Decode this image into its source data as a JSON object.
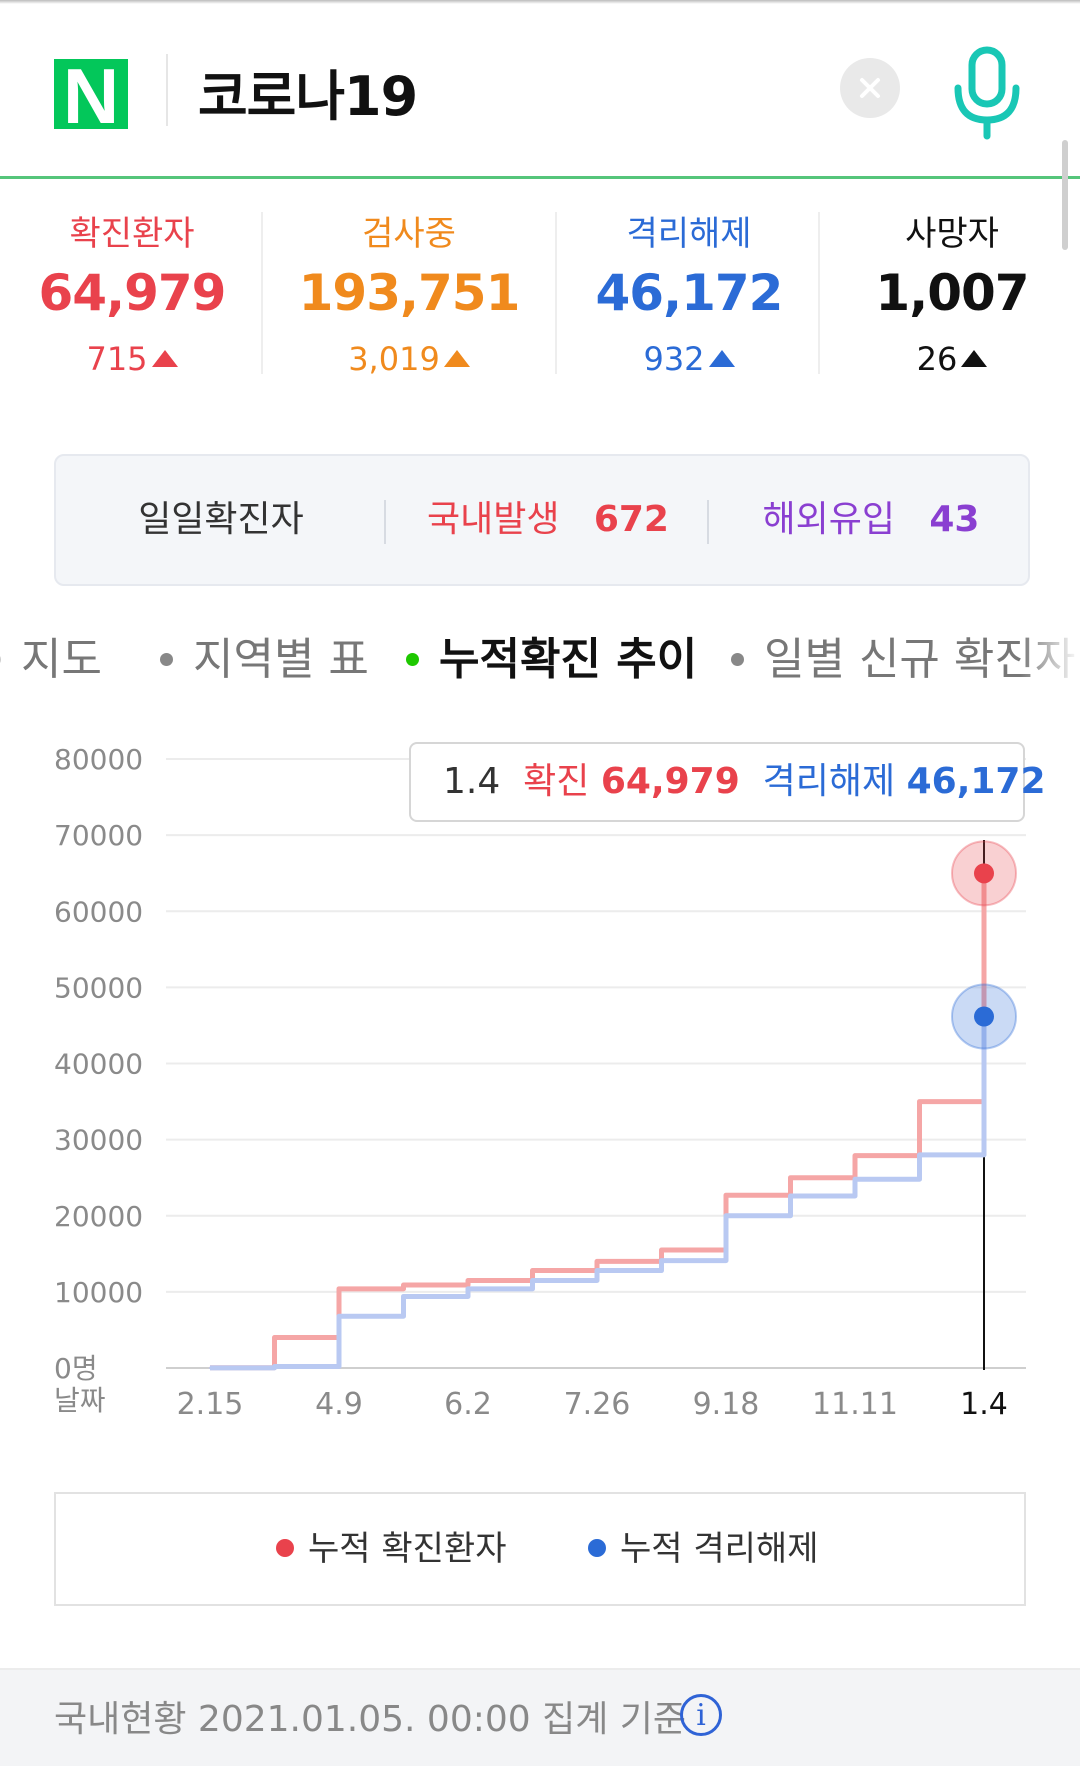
{
  "search": {
    "query": "코로나19",
    "logo_text": "N"
  },
  "colors": {
    "confirmed": "#e9424c",
    "testing": "#f08a1d",
    "released": "#2b6bd6",
    "deaths": "#111111",
    "confirmed_line": "#f5a6a6",
    "released_line": "#b9c9f2",
    "naver_green": "#03c75a",
    "overseas": "#8a3fd1"
  },
  "stats": [
    {
      "label": "확진환자",
      "value": "64,979",
      "change": "715"
    },
    {
      "label": "검사중",
      "value": "193,751",
      "change": "3,019"
    },
    {
      "label": "격리해제",
      "value": "46,172",
      "change": "932"
    },
    {
      "label": "사망자",
      "value": "1,007",
      "change": "26"
    }
  ],
  "daily": {
    "label": "일일확진자",
    "domestic_label": "국내발생",
    "domestic_value": "672",
    "overseas_label": "해외유입",
    "overseas_value": "43"
  },
  "tabs": [
    {
      "label": "지도"
    },
    {
      "label": "지역별 표"
    },
    {
      "label": "누적확진 추이"
    },
    {
      "label": "일별 신규 확진자"
    }
  ],
  "chart_data": {
    "type": "line",
    "y_ticks": [
      "80000",
      "70000",
      "60000",
      "50000",
      "40000",
      "30000",
      "20000",
      "10000",
      "0명"
    ],
    "x_axis_label": "날짜",
    "x_ticks": [
      "2.15",
      "4.9",
      "6.2",
      "7.26",
      "9.18",
      "11.11",
      "1.4"
    ],
    "ylim": [
      0,
      80000
    ],
    "x": [
      "2.15",
      "3.1",
      "4.9",
      "5.10",
      "6.2",
      "7.1",
      "7.26",
      "8.15",
      "9.18",
      "10.15",
      "11.11",
      "12.1",
      "1.4"
    ],
    "series": [
      {
        "name": "누적 확진환자",
        "values": [
          28,
          4000,
          10400,
          10900,
          11500,
          12800,
          14000,
          15500,
          22700,
          25000,
          27900,
          35000,
          64979
        ]
      },
      {
        "name": "누적 격리해제",
        "values": [
          16,
          200,
          6800,
          9400,
          10400,
          11500,
          12800,
          14100,
          20000,
          22600,
          24800,
          28000,
          46172
        ]
      }
    ],
    "tooltip": {
      "date": "1.4",
      "confirmed_label": "확진",
      "confirmed_value": "64,979",
      "released_label": "격리해제",
      "released_value": "46,172"
    },
    "grid": true
  },
  "legend": {
    "confirmed": "누적 확진환자",
    "released": "누적 격리해제"
  },
  "footer": {
    "text": "국내현황 2021.01.05. 00:00 집계 기준",
    "info_glyph": "i"
  }
}
